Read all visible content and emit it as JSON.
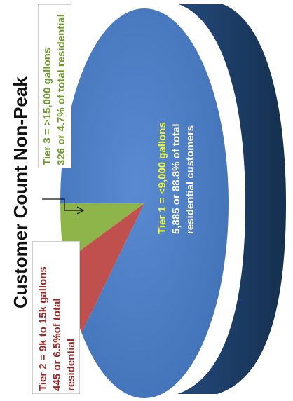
{
  "chart_data": {
    "type": "pie",
    "title": "Customer Count Non-Peak",
    "series": [
      {
        "name": "Tier 1 = <9,000 gallons",
        "value": 5885,
        "percent": 88.8,
        "color": "#4a7cc3"
      },
      {
        "name": "Tier 2 = 9k to 15k gallons",
        "value": 445,
        "percent": 6.5,
        "color": "#c0504d"
      },
      {
        "name": "Tier 3 = >15,000 gallons",
        "value": 326,
        "percent": 4.7,
        "color": "#8db54a"
      }
    ],
    "labels": {
      "tier1": [
        "Tier 1 = <9,000 gallons",
        "5,885 or 88.8% of total",
        "residential customers"
      ],
      "tier2": [
        "Tier 2 = 9k to 15k gallons",
        "445 or 6.5%of total",
        "residential"
      ],
      "tier3": [
        "Tier 3 = >15,000 gallons",
        "326 or 4.7% of total residential"
      ]
    },
    "side_color": "#1d3a63"
  }
}
